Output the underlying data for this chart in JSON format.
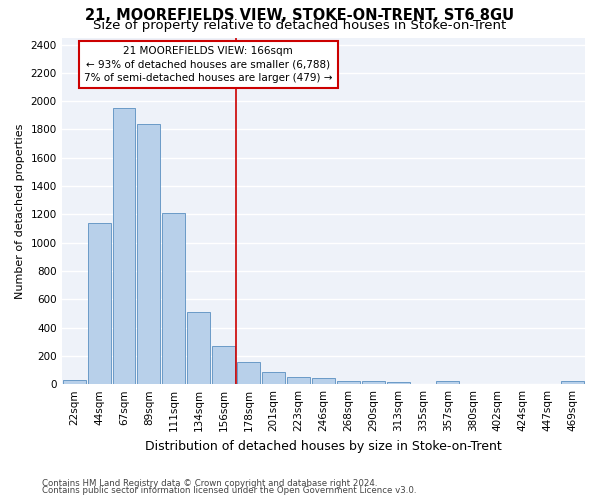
{
  "title": "21, MOOREFIELDS VIEW, STOKE-ON-TRENT, ST6 8GU",
  "subtitle": "Size of property relative to detached houses in Stoke-on-Trent",
  "xlabel": "Distribution of detached houses by size in Stoke-on-Trent",
  "ylabel": "Number of detached properties",
  "bar_labels": [
    "22sqm",
    "44sqm",
    "67sqm",
    "89sqm",
    "111sqm",
    "134sqm",
    "156sqm",
    "178sqm",
    "201sqm",
    "223sqm",
    "246sqm",
    "268sqm",
    "290sqm",
    "313sqm",
    "335sqm",
    "357sqm",
    "380sqm",
    "402sqm",
    "424sqm",
    "447sqm",
    "469sqm"
  ],
  "bar_values": [
    30,
    1140,
    1950,
    1840,
    1210,
    510,
    270,
    155,
    85,
    50,
    42,
    20,
    22,
    15,
    0,
    20,
    0,
    0,
    0,
    0,
    20
  ],
  "bar_color": "#b8d0ea",
  "bar_edge_color": "#5a8fc0",
  "property_label": "21 MOOREFIELDS VIEW: 166sqm",
  "annotation_line1": "← 93% of detached houses are smaller (6,788)",
  "annotation_line2": "7% of semi-detached houses are larger (479) →",
  "vline_color": "#cc0000",
  "vline_position": 6.5,
  "annotation_box_color": "#cc0000",
  "footer1": "Contains HM Land Registry data © Crown copyright and database right 2024.",
  "footer2": "Contains public sector information licensed under the Open Government Licence v3.0.",
  "ylim": [
    0,
    2450
  ],
  "yticks": [
    0,
    200,
    400,
    600,
    800,
    1000,
    1200,
    1400,
    1600,
    1800,
    2000,
    2200,
    2400
  ],
  "bg_color": "#eef2f9",
  "grid_color": "#ffffff",
  "title_fontsize": 10.5,
  "subtitle_fontsize": 9.5,
  "ylabel_fontsize": 8,
  "xlabel_fontsize": 9,
  "tick_fontsize": 7.5,
  "annot_fontsize": 7.5
}
